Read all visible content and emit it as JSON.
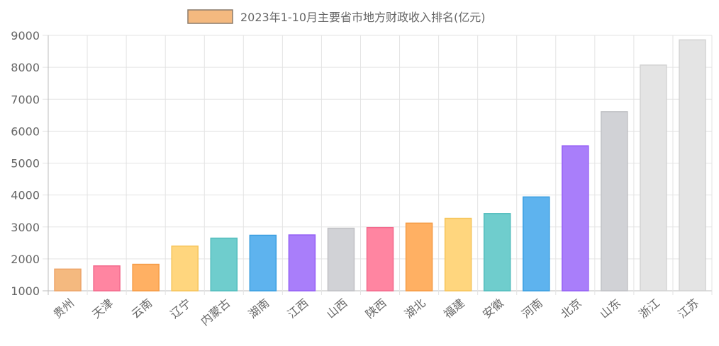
{
  "chart_data": {
    "type": "bar",
    "title": "",
    "legend": {
      "label": "2023年1-10月主要省市地方财政收入排名(亿元)",
      "position": "top",
      "swatch_fill": "#F4B97F",
      "swatch_border": "#8B7B6B"
    },
    "categories": [
      "贵州",
      "天津",
      "云南",
      "辽宁",
      "内蒙古",
      "湖南",
      "江西",
      "山西",
      "陕西",
      "湖北",
      "福建",
      "安徽",
      "河南",
      "北京",
      "山东",
      "浙江",
      "江苏"
    ],
    "values": [
      1680,
      1780,
      1830,
      2400,
      2650,
      2740,
      2750,
      2960,
      2980,
      3120,
      3270,
      3420,
      3940,
      5540,
      6610,
      8070,
      8860
    ],
    "colors": [
      "#F4B97F",
      "#FF85A1",
      "#FFB063",
      "#FFD67E",
      "#6FCDCD",
      "#5EB3EE",
      "#A97EFA",
      "#D1D2D6",
      "#FF85A1",
      "#FFB063",
      "#FFD67E",
      "#6FCDCD",
      "#5EB3EE",
      "#A97EFA",
      "#D1D2D6",
      "#E4E4E4",
      "#E4E4E4"
    ],
    "borders": [
      "#EDA468",
      "#F26A8D",
      "#F59B45",
      "#F5C45A",
      "#52BDBD",
      "#3A9EE0",
      "#9560F5",
      "#C0C1C5",
      "#F26A8D",
      "#F59B45",
      "#F5C45A",
      "#52BDBD",
      "#3A9EE0",
      "#9560F5",
      "#C0C1C5",
      "#D3D3D3",
      "#D3D3D3"
    ],
    "ylim": [
      1000,
      9000
    ],
    "yticks": [
      "1000",
      "2000",
      "3000",
      "4000",
      "5000",
      "6000",
      "7000",
      "8000",
      "9000"
    ],
    "ytick_values": [
      1000,
      2000,
      3000,
      4000,
      5000,
      6000,
      7000,
      8000,
      9000
    ],
    "xlabel": "",
    "ylabel": "",
    "grid": true
  }
}
